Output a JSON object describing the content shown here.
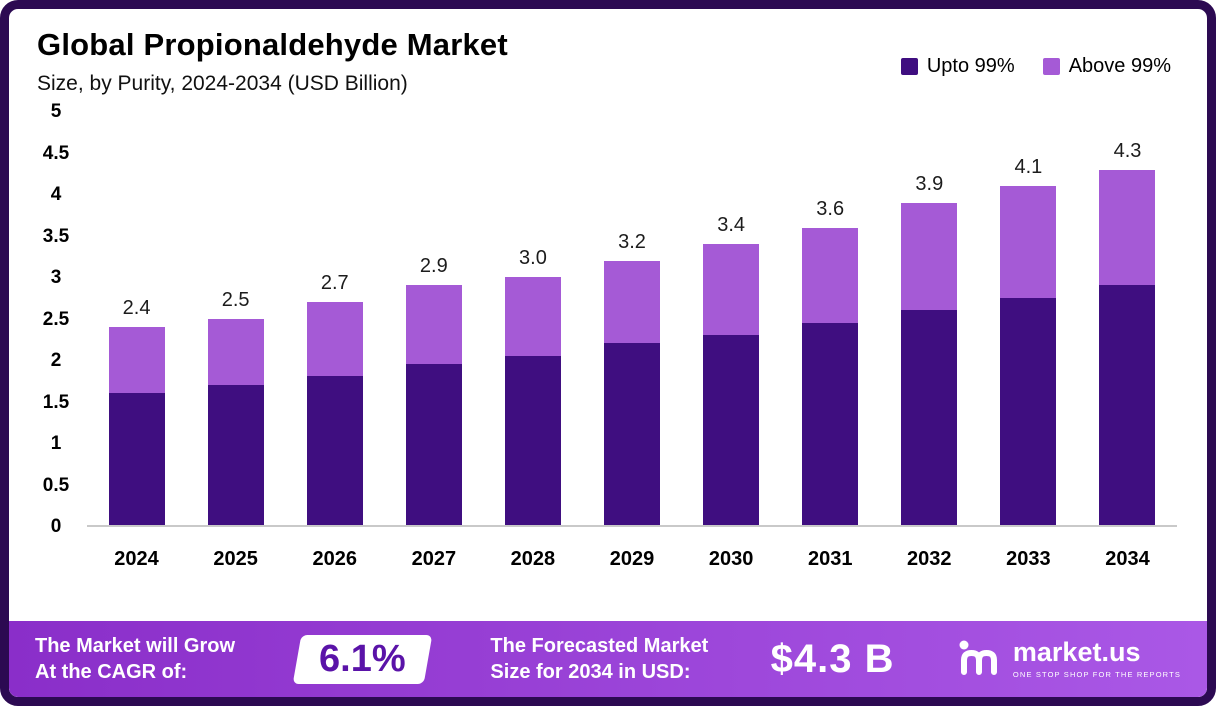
{
  "header": {
    "title": "Global Propionaldehyde Market",
    "subtitle": "Size, by Purity, 2024-2034 (USD Billion)"
  },
  "legend": {
    "items": [
      {
        "label": "Upto 99%",
        "color": "#3f0e80"
      },
      {
        "label": "Above 99%",
        "color": "#a55ad6"
      }
    ]
  },
  "chart_data": {
    "type": "bar",
    "stacked": true,
    "title": "Global Propionaldehyde Market Size, by Purity, 2024-2034 (USD Billion)",
    "categories": [
      "2024",
      "2025",
      "2026",
      "2027",
      "2028",
      "2029",
      "2030",
      "2031",
      "2032",
      "2033",
      "2034"
    ],
    "series": [
      {
        "name": "Upto 99%",
        "color": "#3f0e80",
        "values": [
          1.6,
          1.7,
          1.8,
          1.95,
          2.05,
          2.2,
          2.3,
          2.45,
          2.6,
          2.75,
          2.9
        ]
      },
      {
        "name": "Above 99%",
        "color": "#a55ad6",
        "values": [
          0.8,
          0.8,
          0.9,
          0.95,
          0.95,
          1.0,
          1.1,
          1.15,
          1.3,
          1.35,
          1.4
        ]
      }
    ],
    "totals": [
      2.4,
      2.5,
      2.7,
      2.9,
      3.0,
      3.2,
      3.4,
      3.6,
      3.9,
      4.1,
      4.3
    ],
    "total_labels": [
      "2.4",
      "2.5",
      "2.7",
      "2.9",
      "3.0",
      "3.2",
      "3.4",
      "3.6",
      "3.9",
      "4.1",
      "4.3"
    ],
    "ylabel": "",
    "xlabel": "",
    "ylim": [
      0,
      5
    ],
    "yticks": [
      {
        "value": 0,
        "label": "0"
      },
      {
        "value": 0.5,
        "label": "0.5"
      },
      {
        "value": 1,
        "label": "1"
      },
      {
        "value": 1.5,
        "label": "1.5"
      },
      {
        "value": 2,
        "label": "2"
      },
      {
        "value": 2.5,
        "label": "2.5"
      },
      {
        "value": 3,
        "label": "3"
      },
      {
        "value": 3.5,
        "label": "3.5"
      },
      {
        "value": 4,
        "label": "4"
      },
      {
        "value": 4.5,
        "label": "4.5"
      },
      {
        "value": 5,
        "label": "5"
      }
    ],
    "grid": false,
    "legend_position": "top-right"
  },
  "footer": {
    "cagr_text_line1": "The Market will Grow",
    "cagr_text_line2": "At the CAGR of:",
    "cagr_value": "6.1%",
    "forecast_text_line1": "The Forecasted Market",
    "forecast_text_line2": "Size for 2034 in USD:",
    "forecast_value": "$4.3 B",
    "brand": "market.us",
    "brand_tagline": "ONE STOP SHOP FOR THE REPORTS"
  },
  "colors": {
    "frame_border": "#2c0a52",
    "bar_dark": "#3f0e80",
    "bar_light": "#a55ad6",
    "footer_gradient_start": "#8a2ec9",
    "footer_gradient_end": "#aa58e6",
    "badge_text": "#5a13a8",
    "axis_line": "#c9c9c9"
  }
}
